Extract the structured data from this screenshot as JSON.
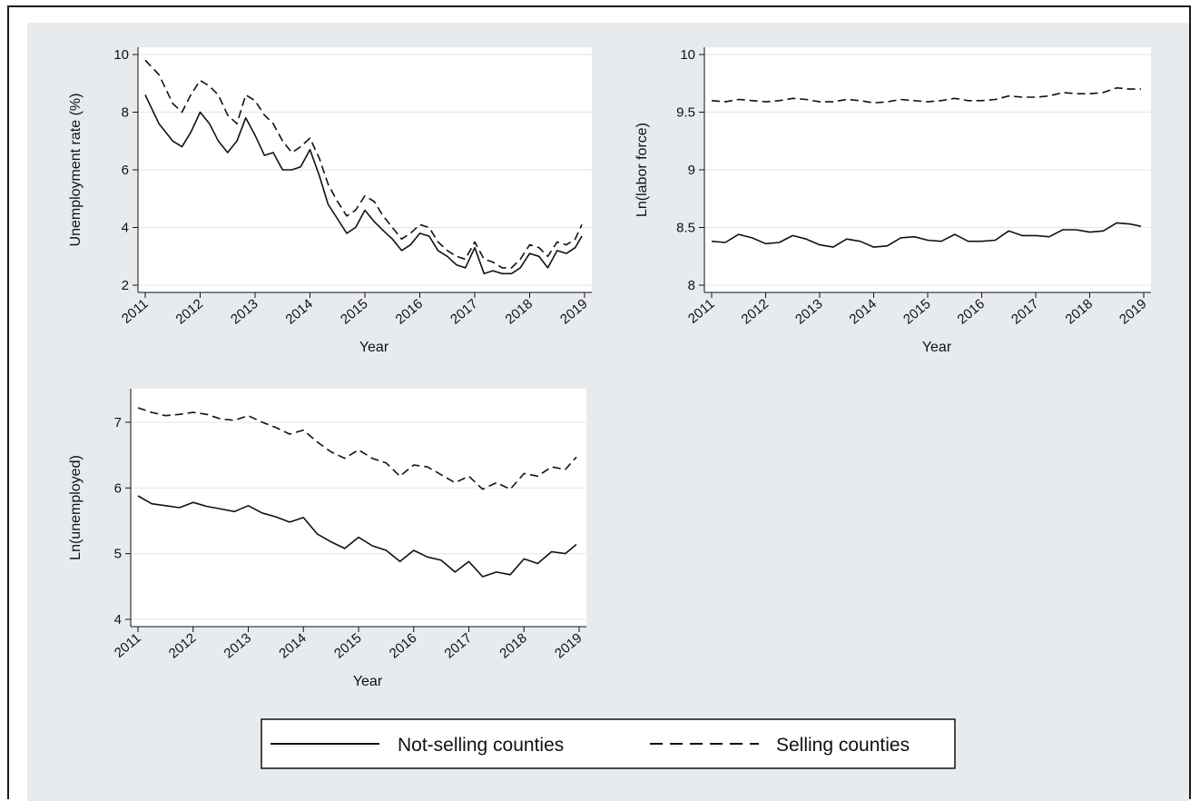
{
  "legend": {
    "solid_label": "Not-selling counties",
    "dashed_label": "Selling counties"
  },
  "colors": {
    "line": "#111111",
    "plot_bg": "#ffffff",
    "grid": "#e6e6e6",
    "panel_bg": "#e8ebee"
  },
  "chart_data": [
    {
      "type": "line",
      "xlabel": "Year",
      "ylabel": "Unemployment rate (%)",
      "xlim": [
        2011,
        2019
      ],
      "ylim": [
        2,
        10
      ],
      "xticks": [
        "2011",
        "2012",
        "2013",
        "2014",
        "2015",
        "2016",
        "2017",
        "2018",
        "2019"
      ],
      "yticks": [
        "2",
        "4",
        "6",
        "8",
        "10"
      ],
      "grid": true,
      "series": [
        {
          "name": "Not-selling counties",
          "dash": "solid",
          "x": [
            2011.0,
            2011.25,
            2011.5,
            2011.67,
            2011.83,
            2012.0,
            2012.17,
            2012.33,
            2012.5,
            2012.67,
            2012.83,
            2013.0,
            2013.17,
            2013.33,
            2013.5,
            2013.67,
            2013.83,
            2014.0,
            2014.17,
            2014.33,
            2014.5,
            2014.67,
            2014.83,
            2015.0,
            2015.17,
            2015.33,
            2015.5,
            2015.67,
            2015.83,
            2016.0,
            2016.17,
            2016.33,
            2016.5,
            2016.67,
            2016.83,
            2017.0,
            2017.17,
            2017.33,
            2017.5,
            2017.67,
            2017.83,
            2018.0,
            2018.17,
            2018.33,
            2018.5,
            2018.67,
            2018.83,
            2018.95
          ],
          "values": [
            8.6,
            7.6,
            7.0,
            6.8,
            7.3,
            8.0,
            7.6,
            7.0,
            6.6,
            7.0,
            7.8,
            7.2,
            6.5,
            6.6,
            6.0,
            6.0,
            6.1,
            6.7,
            5.8,
            4.8,
            4.3,
            3.8,
            4.0,
            4.6,
            4.2,
            3.9,
            3.6,
            3.2,
            3.4,
            3.8,
            3.7,
            3.2,
            3.0,
            2.7,
            2.6,
            3.3,
            2.4,
            2.5,
            2.4,
            2.4,
            2.6,
            3.1,
            3.0,
            2.6,
            3.2,
            3.1,
            3.3,
            3.7
          ]
        },
        {
          "name": "Selling counties",
          "dash": "dashed",
          "x": [
            2011.0,
            2011.25,
            2011.5,
            2011.67,
            2011.83,
            2012.0,
            2012.17,
            2012.33,
            2012.5,
            2012.67,
            2012.83,
            2013.0,
            2013.17,
            2013.33,
            2013.5,
            2013.67,
            2013.83,
            2014.0,
            2014.17,
            2014.33,
            2014.5,
            2014.67,
            2014.83,
            2015.0,
            2015.17,
            2015.33,
            2015.5,
            2015.67,
            2015.83,
            2016.0,
            2016.17,
            2016.33,
            2016.5,
            2016.67,
            2016.83,
            2017.0,
            2017.17,
            2017.33,
            2017.5,
            2017.67,
            2017.83,
            2018.0,
            2018.17,
            2018.33,
            2018.5,
            2018.67,
            2018.83,
            2018.95
          ],
          "values": [
            9.8,
            9.3,
            8.3,
            8.0,
            8.6,
            9.1,
            8.9,
            8.6,
            7.9,
            7.6,
            8.6,
            8.4,
            7.9,
            7.6,
            7.0,
            6.6,
            6.8,
            7.1,
            6.4,
            5.5,
            4.9,
            4.4,
            4.6,
            5.1,
            4.9,
            4.4,
            4.0,
            3.6,
            3.8,
            4.1,
            4.0,
            3.5,
            3.2,
            3.0,
            2.9,
            3.5,
            2.9,
            2.8,
            2.6,
            2.6,
            2.9,
            3.4,
            3.3,
            3.0,
            3.5,
            3.4,
            3.6,
            4.1
          ]
        }
      ]
    },
    {
      "type": "line",
      "xlabel": "Year",
      "ylabel": "Ln(labor force)",
      "xlim": [
        2011,
        2019
      ],
      "ylim": [
        8,
        10
      ],
      "xticks": [
        "2011",
        "2012",
        "2013",
        "2014",
        "2015",
        "2016",
        "2017",
        "2018",
        "2019"
      ],
      "yticks": [
        "8",
        "8.5",
        "9",
        "9.5",
        "10"
      ],
      "grid": true,
      "series": [
        {
          "name": "Not-selling counties",
          "dash": "solid",
          "x": [
            2011.0,
            2011.25,
            2011.5,
            2011.75,
            2012.0,
            2012.25,
            2012.5,
            2012.75,
            2013.0,
            2013.25,
            2013.5,
            2013.75,
            2014.0,
            2014.25,
            2014.5,
            2014.75,
            2015.0,
            2015.25,
            2015.5,
            2015.75,
            2016.0,
            2016.25,
            2016.5,
            2016.75,
            2017.0,
            2017.25,
            2017.5,
            2017.75,
            2018.0,
            2018.25,
            2018.5,
            2018.75,
            2018.95
          ],
          "values": [
            8.38,
            8.37,
            8.44,
            8.41,
            8.36,
            8.37,
            8.43,
            8.4,
            8.35,
            8.33,
            8.4,
            8.38,
            8.33,
            8.34,
            8.41,
            8.42,
            8.39,
            8.38,
            8.44,
            8.38,
            8.38,
            8.39,
            8.47,
            8.43,
            8.43,
            8.42,
            8.48,
            8.48,
            8.46,
            8.47,
            8.54,
            8.53,
            8.51
          ]
        },
        {
          "name": "Selling counties",
          "dash": "dashed",
          "x": [
            2011.0,
            2011.25,
            2011.5,
            2011.75,
            2012.0,
            2012.25,
            2012.5,
            2012.75,
            2013.0,
            2013.25,
            2013.5,
            2013.75,
            2014.0,
            2014.25,
            2014.5,
            2014.75,
            2015.0,
            2015.25,
            2015.5,
            2015.75,
            2016.0,
            2016.25,
            2016.5,
            2016.75,
            2017.0,
            2017.25,
            2017.5,
            2017.75,
            2018.0,
            2018.25,
            2018.5,
            2018.75,
            2018.95
          ],
          "values": [
            9.6,
            9.59,
            9.61,
            9.6,
            9.59,
            9.6,
            9.62,
            9.61,
            9.59,
            9.59,
            9.61,
            9.6,
            9.58,
            9.59,
            9.61,
            9.6,
            9.59,
            9.6,
            9.62,
            9.6,
            9.6,
            9.61,
            9.64,
            9.63,
            9.63,
            9.64,
            9.67,
            9.66,
            9.66,
            9.67,
            9.71,
            9.7,
            9.7
          ]
        }
      ]
    },
    {
      "type": "line",
      "xlabel": "Year",
      "ylabel": "Ln(unemployed)",
      "xlim": [
        2011,
        2019
      ],
      "ylim": [
        4,
        7.4
      ],
      "xticks": [
        "2011",
        "2012",
        "2013",
        "2014",
        "2015",
        "2016",
        "2017",
        "2018",
        "2019"
      ],
      "yticks": [
        "4",
        "5",
        "6",
        "7"
      ],
      "grid": true,
      "series": [
        {
          "name": "Not-selling counties",
          "dash": "solid",
          "x": [
            2011.0,
            2011.25,
            2011.5,
            2011.75,
            2012.0,
            2012.25,
            2012.5,
            2012.75,
            2013.0,
            2013.25,
            2013.5,
            2013.75,
            2014.0,
            2014.25,
            2014.5,
            2014.75,
            2015.0,
            2015.25,
            2015.5,
            2015.75,
            2016.0,
            2016.25,
            2016.5,
            2016.75,
            2017.0,
            2017.25,
            2017.5,
            2017.75,
            2018.0,
            2018.25,
            2018.5,
            2018.75,
            2018.95
          ],
          "values": [
            5.88,
            5.76,
            5.73,
            5.7,
            5.78,
            5.72,
            5.68,
            5.64,
            5.73,
            5.62,
            5.56,
            5.48,
            5.55,
            5.3,
            5.18,
            5.08,
            5.25,
            5.12,
            5.05,
            4.88,
            5.05,
            4.95,
            4.9,
            4.72,
            4.88,
            4.65,
            4.72,
            4.68,
            4.92,
            4.85,
            5.03,
            5.0,
            5.14
          ]
        },
        {
          "name": "Selling counties",
          "dash": "dashed",
          "x": [
            2011.0,
            2011.25,
            2011.5,
            2011.75,
            2012.0,
            2012.25,
            2012.5,
            2012.75,
            2013.0,
            2013.25,
            2013.5,
            2013.75,
            2014.0,
            2014.25,
            2014.5,
            2014.75,
            2015.0,
            2015.25,
            2015.5,
            2015.75,
            2016.0,
            2016.25,
            2016.5,
            2016.75,
            2017.0,
            2017.25,
            2017.5,
            2017.75,
            2018.0,
            2018.25,
            2018.5,
            2018.75,
            2018.95
          ],
          "values": [
            7.22,
            7.15,
            7.1,
            7.12,
            7.15,
            7.12,
            7.05,
            7.03,
            7.1,
            7.0,
            6.92,
            6.82,
            6.88,
            6.7,
            6.55,
            6.45,
            6.58,
            6.45,
            6.38,
            6.18,
            6.35,
            6.32,
            6.2,
            6.08,
            6.18,
            5.98,
            6.08,
            5.98,
            6.22,
            6.18,
            6.32,
            6.28,
            6.47
          ]
        }
      ]
    }
  ]
}
